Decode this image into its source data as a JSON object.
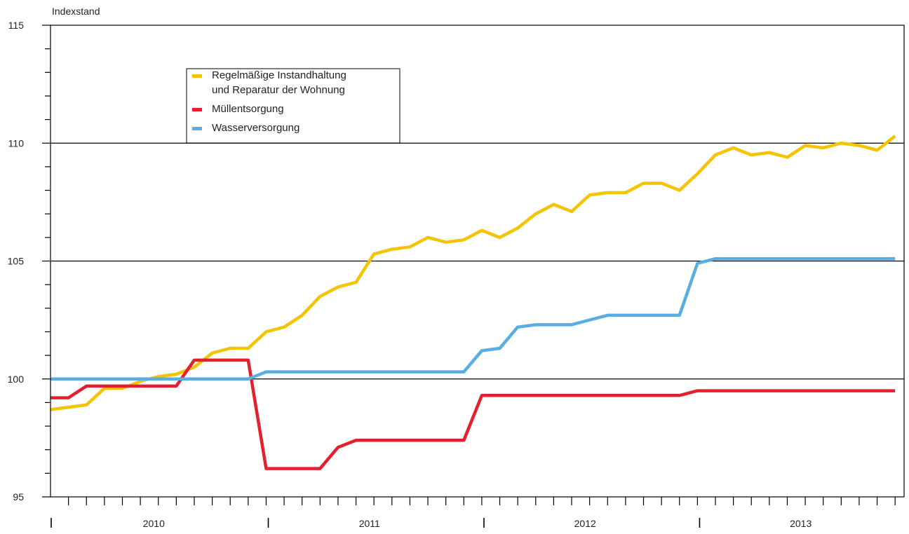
{
  "chart_data": {
    "type": "line",
    "title": "",
    "ylabel": "Indexstand",
    "xlabel": "",
    "ylim": [
      95,
      115
    ],
    "yticks": [
      95,
      100,
      105,
      110,
      115
    ],
    "gridlines_y": [
      100,
      105,
      110
    ],
    "x_unit": "month",
    "x_start": "2010-01",
    "x_end": "2013-12",
    "year_labels": [
      "2010",
      "2011",
      "2012",
      "2013"
    ],
    "legend_position": "top-left",
    "series": [
      {
        "name": "Regelmäßige Instandhaltung und Reparatur der Wohnung",
        "name_lines": [
          "Regelmäßige Instandhaltung",
          "und Reparatur der Wohnung"
        ],
        "color": "#f5c400",
        "values": [
          98.7,
          98.8,
          98.9,
          99.6,
          99.6,
          99.9,
          100.1,
          100.2,
          100.5,
          101.1,
          101.3,
          101.3,
          102.0,
          102.2,
          102.7,
          103.5,
          103.9,
          104.1,
          105.3,
          105.5,
          105.6,
          106.0,
          105.8,
          105.9,
          106.3,
          106.0,
          106.4,
          107.0,
          107.4,
          107.1,
          107.8,
          107.9,
          107.9,
          108.3,
          108.3,
          108.0,
          108.7,
          109.5,
          109.8,
          109.5,
          109.6,
          109.4,
          109.9,
          109.8,
          110.0,
          109.9,
          109.7,
          110.3
        ]
      },
      {
        "name": "Müllentsorgung",
        "name_lines": [
          "Müllentsorgung"
        ],
        "color": "#e5202e",
        "values": [
          99.2,
          99.2,
          99.7,
          99.7,
          99.7,
          99.7,
          99.7,
          99.7,
          100.8,
          100.8,
          100.8,
          100.8,
          96.2,
          96.2,
          96.2,
          96.2,
          97.1,
          97.4,
          97.4,
          97.4,
          97.4,
          97.4,
          97.4,
          97.4,
          99.3,
          99.3,
          99.3,
          99.3,
          99.3,
          99.3,
          99.3,
          99.3,
          99.3,
          99.3,
          99.3,
          99.3,
          99.5,
          99.5,
          99.5,
          99.5,
          99.5,
          99.5,
          99.5,
          99.5,
          99.5,
          99.5,
          99.5,
          99.5
        ]
      },
      {
        "name": "Wasserversorgung",
        "name_lines": [
          "Wasserversorgung"
        ],
        "color": "#58aee0",
        "values": [
          100.0,
          100.0,
          100.0,
          100.0,
          100.0,
          100.0,
          100.0,
          100.0,
          100.0,
          100.0,
          100.0,
          100.0,
          100.3,
          100.3,
          100.3,
          100.3,
          100.3,
          100.3,
          100.3,
          100.3,
          100.3,
          100.3,
          100.3,
          100.3,
          101.2,
          101.3,
          102.2,
          102.3,
          102.3,
          102.3,
          102.5,
          102.7,
          102.7,
          102.7,
          102.7,
          102.7,
          104.9,
          105.1,
          105.1,
          105.1,
          105.1,
          105.1,
          105.1,
          105.1,
          105.1,
          105.1,
          105.1,
          105.1
        ]
      }
    ]
  }
}
